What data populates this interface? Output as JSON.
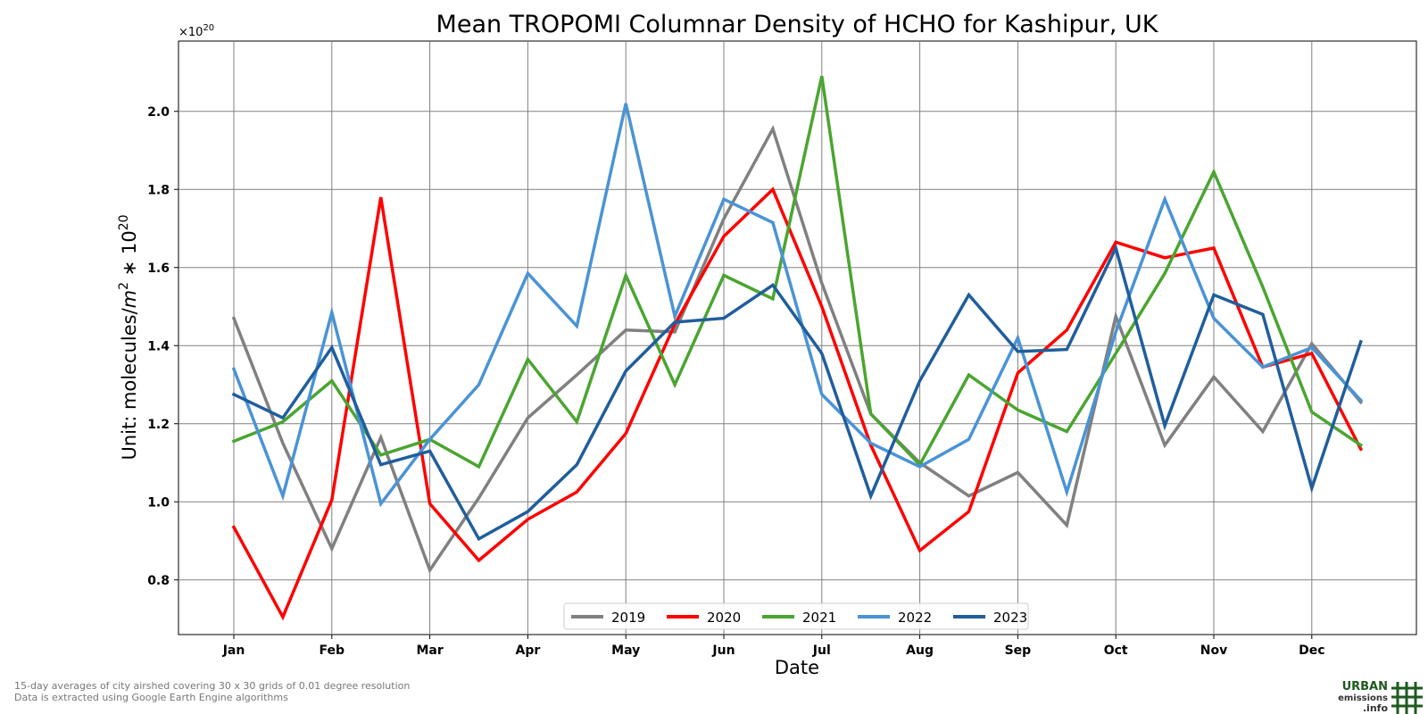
{
  "chart_data": {
    "type": "line",
    "title": "Mean TROPOMI Columnar Density of HCHO for Kashipur, UK",
    "xlabel": "Date",
    "ylabel_prefix": "Unit: molecules/",
    "ylabel_unit_base": "m",
    "ylabel_unit_exp": "2",
    "ylabel_mult": " ∗ 10",
    "ylabel_mult_exp": "20",
    "offset_base": "×10",
    "offset_exp": "20",
    "ylim": [
      0.66,
      2.18
    ],
    "yticks": [
      0.8,
      1.0,
      1.2,
      1.4,
      1.6,
      1.8,
      2.0
    ],
    "ytick_labels": [
      "0.8",
      "1.0",
      "1.2",
      "1.4",
      "1.6",
      "1.8",
      "2.0"
    ],
    "month_labels": [
      "Jan",
      "Feb",
      "Mar",
      "Apr",
      "May",
      "Jun",
      "Jul",
      "Aug",
      "Sep",
      "Oct",
      "Nov",
      "Dec"
    ],
    "grid": true,
    "legend_position": "bottom-center",
    "series": [
      {
        "name": "2019",
        "color": "#808080",
        "values": [
          1.47,
          1.15,
          0.88,
          1.165,
          0.825,
          1.01,
          1.215,
          1.325,
          1.44,
          1.435,
          1.725,
          1.955,
          1.56,
          1.225,
          1.1,
          1.015,
          1.075,
          0.94,
          1.475,
          1.145,
          1.32,
          1.18,
          1.405,
          1.255
        ]
      },
      {
        "name": "2020",
        "color": "#ff0000",
        "values": [
          0.935,
          0.705,
          1.005,
          1.78,
          0.995,
          0.85,
          0.955,
          1.025,
          1.175,
          1.455,
          1.68,
          1.8,
          1.5,
          1.145,
          0.875,
          0.975,
          1.33,
          1.44,
          1.665,
          1.625,
          1.65,
          1.345,
          1.38,
          1.135
        ]
      },
      {
        "name": "2021",
        "color": "#4aa530",
        "values": [
          1.155,
          1.205,
          1.31,
          1.12,
          1.16,
          1.09,
          1.365,
          1.205,
          1.58,
          1.3,
          1.58,
          1.52,
          2.09,
          1.225,
          1.095,
          1.325,
          1.235,
          1.18,
          1.38,
          1.585,
          1.845,
          1.55,
          1.23,
          1.145
        ]
      },
      {
        "name": "2022",
        "color": "#4a93d6",
        "values": [
          1.34,
          1.015,
          1.485,
          0.995,
          1.16,
          1.3,
          1.585,
          1.45,
          2.02,
          1.475,
          1.775,
          1.715,
          1.275,
          1.15,
          1.09,
          1.16,
          1.42,
          1.025,
          1.435,
          1.775,
          1.47,
          1.345,
          1.395,
          1.26
        ]
      },
      {
        "name": "2023",
        "color": "#205e9c",
        "values": [
          1.275,
          1.215,
          1.395,
          1.095,
          1.13,
          0.905,
          0.975,
          1.095,
          1.335,
          1.46,
          1.47,
          1.555,
          1.38,
          1.015,
          1.31,
          1.53,
          1.385,
          1.39,
          1.65,
          1.195,
          1.53,
          1.48,
          1.035,
          1.41
        ]
      }
    ]
  },
  "footnote": {
    "line1": "15-day averages of city airshed covering 30 x 30 grids of 0.01 degree resolution",
    "line2": "Data is extracted using Google Earth Engine algorithms"
  },
  "logo": {
    "line1": "URBAN",
    "line2": "emissions",
    "line3": ".info"
  }
}
